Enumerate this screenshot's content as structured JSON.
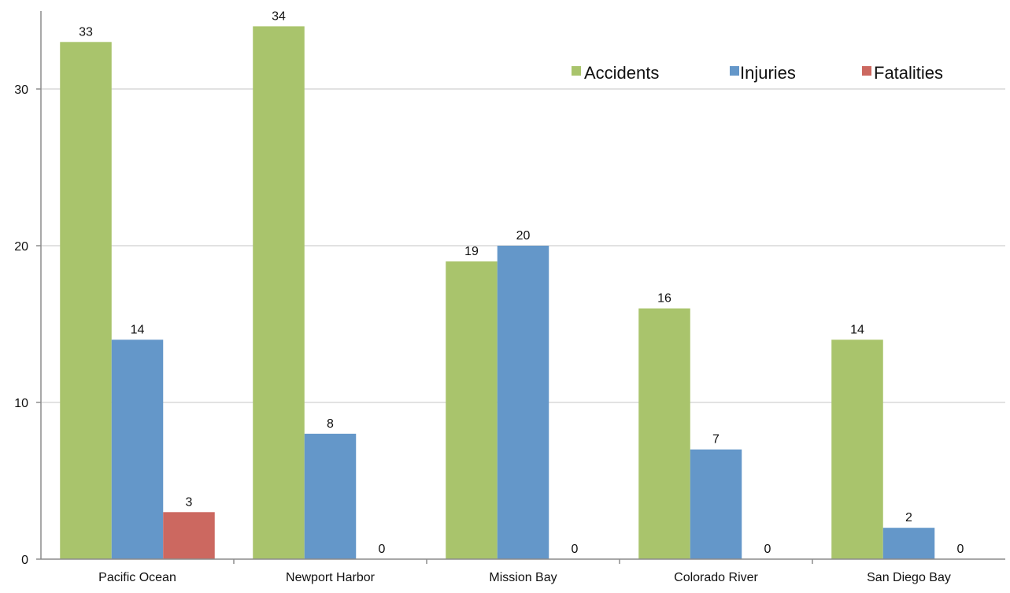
{
  "chart_data": {
    "type": "bar",
    "categories": [
      "Pacific Ocean",
      "Newport Harbor",
      "Mission Bay",
      "Colorado River",
      "San Diego Bay"
    ],
    "series": [
      {
        "name": "Accidents",
        "values": [
          33,
          34,
          19,
          16,
          14
        ],
        "color": "#a9c46c"
      },
      {
        "name": "Injuries",
        "values": [
          14,
          8,
          20,
          7,
          2
        ],
        "color": "#6497c9"
      },
      {
        "name": "Fatalities",
        "values": [
          3,
          0,
          0,
          0,
          0
        ],
        "color": "#cc6860"
      }
    ],
    "title": "",
    "xlabel": "",
    "ylabel": "",
    "ylim": [
      0,
      35
    ],
    "yticks": [
      0,
      10,
      20,
      30
    ],
    "grid": true,
    "legend": "top-right",
    "data_labels": true
  }
}
